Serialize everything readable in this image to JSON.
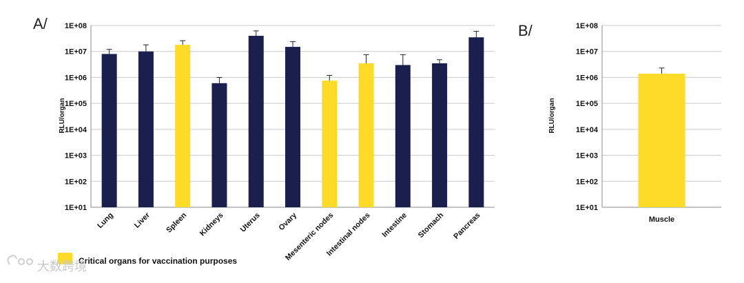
{
  "colors": {
    "navy": "#1b1f4e",
    "yellow": "#fddb28",
    "grid": "#c9c9c9",
    "axis": "#8a8a8a"
  },
  "legend": {
    "label": "Critical organs for vaccination purposes",
    "color": "#fddb28"
  },
  "watermark": {
    "text": "大数跨境"
  },
  "chart_data": [
    {
      "panel": "A/",
      "type": "bar",
      "yscale": "log",
      "ylabel": "RLU/organ",
      "ylim": [
        10,
        100000000
      ],
      "yticks": [
        "1E+01",
        "1E+02",
        "1E+03",
        "1E+04",
        "1E+05",
        "1E+06",
        "1E+07",
        "1E+08"
      ],
      "grid": true,
      "categories": [
        "Lung",
        "Liver",
        "Spleen",
        "Kidneys",
        "Uterus",
        "Ovary",
        "Mesenteric nodes",
        "Intestinal nodes",
        "Intestine",
        "Stomach",
        "Pancreas"
      ],
      "values": [
        8000000,
        10000000,
        18000000,
        600000,
        40000000,
        15000000,
        750000,
        3500000,
        3000000,
        3500000,
        35000000
      ],
      "errors_upper": [
        12000000,
        18000000,
        26000000,
        1000000,
        62000000,
        24000000,
        1200000,
        7500000,
        7500000,
        4800000,
        60000000
      ],
      "highlight": [
        false,
        false,
        true,
        false,
        false,
        false,
        true,
        true,
        false,
        false,
        false
      ]
    },
    {
      "panel": "B/",
      "type": "bar",
      "yscale": "log",
      "ylabel": "RLU/organ",
      "ylim": [
        10,
        100000000
      ],
      "yticks": [
        "1E+01",
        "1E+02",
        "1E+03",
        "1E+04",
        "1E+05",
        "1E+06",
        "1E+07",
        "1E+08"
      ],
      "grid": true,
      "categories": [
        "Muscle"
      ],
      "values": [
        1400000
      ],
      "errors_upper": [
        2300000
      ],
      "highlight": [
        true
      ]
    }
  ]
}
